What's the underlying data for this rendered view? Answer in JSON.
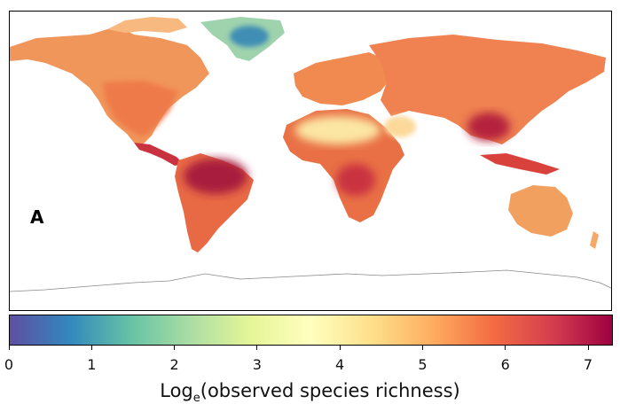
{
  "panel_label": "A",
  "colorbar": {
    "title_main": "Log",
    "title_sub": "e",
    "title_rest": "(observed species richness)",
    "min": 0,
    "max": 7.3,
    "ticks": [
      0,
      1,
      2,
      3,
      4,
      5,
      6,
      7
    ],
    "tick_labels": [
      "0",
      "1",
      "2",
      "3",
      "4",
      "5",
      "6",
      "7"
    ],
    "colormap": "Spectral_r",
    "color_stops": [
      "#5e4fa2",
      "#3288bd",
      "#66c2a5",
      "#abdda4",
      "#e6f598",
      "#ffffbf",
      "#fee08b",
      "#fdae61",
      "#f46d43",
      "#d53e4f",
      "#9e0142"
    ]
  },
  "map": {
    "projection": "equirectangular",
    "legend_position": "bottom",
    "colors": {
      "northern_land": "#f0965a",
      "temperate": "#ee7a48",
      "tropics_high": "#b5203e",
      "tropics_mid": "#d8413c",
      "desert": "#fbe6a3",
      "arid": "#fdd090",
      "greenland_ice": "#6cb8b8",
      "greenland_core": "#3f8eb5",
      "antarctica_outline": "#888888"
    }
  }
}
